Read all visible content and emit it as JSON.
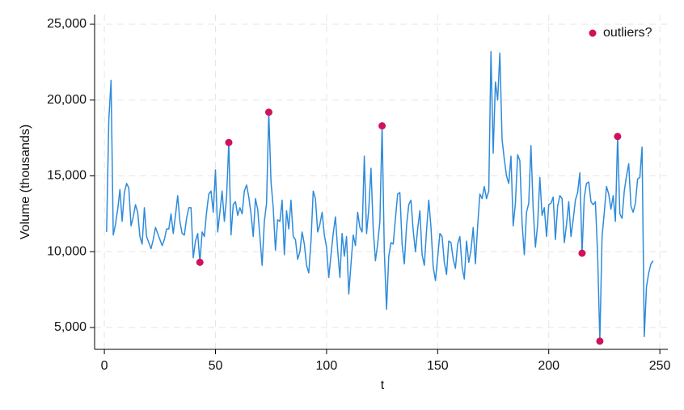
{
  "chart_data": {
    "type": "line",
    "xlabel": "t",
    "ylabel": "Volume (thousands)",
    "xlim": [
      -4.4,
      253.6
    ],
    "ylim": [
      3560,
      25640
    ],
    "xticks": [
      0,
      50,
      100,
      150,
      200,
      250
    ],
    "yticks": [
      {
        "value": 5000,
        "label": "5,000"
      },
      {
        "value": 10000,
        "label": "10,000"
      },
      {
        "value": 15000,
        "label": "15,000"
      },
      {
        "value": 20000,
        "label": "20,000"
      },
      {
        "value": 25000,
        "label": "25,000"
      }
    ],
    "grid": true,
    "legend": "top-right",
    "series": [
      {
        "type": "line",
        "color": "#2e8bdb",
        "x": [
          1,
          2,
          3,
          4,
          5,
          6,
          7,
          8,
          9,
          10,
          11,
          12,
          13,
          14,
          15,
          16,
          17,
          18,
          19,
          20,
          21,
          22,
          23,
          24,
          25,
          26,
          27,
          28,
          29,
          30,
          31,
          32,
          33,
          34,
          35,
          36,
          37,
          38,
          39,
          40,
          41,
          42,
          43,
          44,
          45,
          46,
          47,
          48,
          49,
          50,
          51,
          52,
          53,
          54,
          55,
          56,
          57,
          58,
          59,
          60,
          61,
          62,
          63,
          64,
          65,
          66,
          67,
          68,
          69,
          70,
          71,
          72,
          73,
          74,
          75,
          76,
          77,
          78,
          79,
          80,
          81,
          82,
          83,
          84,
          85,
          86,
          87,
          88,
          89,
          90,
          91,
          92,
          93,
          94,
          95,
          96,
          97,
          98,
          99,
          100,
          101,
          102,
          103,
          104,
          105,
          106,
          107,
          108,
          109,
          110,
          111,
          112,
          113,
          114,
          115,
          116,
          117,
          118,
          119,
          120,
          121,
          122,
          123,
          124,
          125,
          126,
          127,
          128,
          129,
          130,
          131,
          132,
          133,
          134,
          135,
          136,
          137,
          138,
          139,
          140,
          141,
          142,
          143,
          144,
          145,
          146,
          147,
          148,
          149,
          150,
          151,
          152,
          153,
          154,
          155,
          156,
          157,
          158,
          159,
          160,
          161,
          162,
          163,
          164,
          165,
          166,
          167,
          168,
          169,
          170,
          171,
          172,
          173,
          174,
          175,
          176,
          177,
          178,
          179,
          180,
          181,
          182,
          183,
          184,
          185,
          186,
          187,
          188,
          189,
          190,
          191,
          192,
          193,
          194,
          195,
          196,
          197,
          198,
          199,
          200,
          201,
          202,
          203,
          204,
          205,
          206,
          207,
          208,
          209,
          210,
          211,
          212,
          213,
          214,
          215,
          216,
          217,
          218,
          219,
          220,
          221,
          222,
          223,
          224,
          225,
          226,
          227,
          228,
          229,
          230,
          231,
          232,
          233,
          234,
          235,
          236,
          237,
          238,
          239,
          240,
          241,
          242,
          243,
          244,
          245,
          246,
          247
        ],
        "values": [
          11300,
          18700,
          21300,
          11100,
          11800,
          12800,
          14100,
          12000,
          13900,
          14500,
          14200,
          11700,
          12300,
          13100,
          12600,
          11000,
          10500,
          12900,
          11000,
          10600,
          10200,
          10800,
          11600,
          11200,
          10800,
          10400,
          10800,
          11500,
          11500,
          12500,
          11200,
          12400,
          13700,
          12000,
          11200,
          11100,
          12200,
          12900,
          12900,
          9600,
          10700,
          11200,
          9300,
          11300,
          11000,
          12600,
          13800,
          14000,
          12600,
          15400,
          11300,
          12600,
          14000,
          12000,
          13600,
          17200,
          11100,
          13100,
          13300,
          12400,
          12900,
          12500,
          14000,
          14400,
          13600,
          12500,
          11000,
          13500,
          12800,
          11000,
          9100,
          12000,
          13200,
          19200,
          14600,
          12900,
          10100,
          12100,
          12000,
          13400,
          9800,
          12700,
          11500,
          13400,
          11000,
          10800,
          9500,
          10000,
          11300,
          10500,
          9100,
          8600,
          10700,
          14000,
          13500,
          11300,
          11800,
          12600,
          11100,
          10300,
          8300,
          9800,
          11200,
          12300,
          10100,
          8300,
          11200,
          9700,
          11000,
          7200,
          9200,
          11100,
          10400,
          12600,
          11600,
          11300,
          16300,
          11200,
          12800,
          15500,
          11500,
          9400,
          10500,
          12000,
          18300,
          10000,
          6200,
          9700,
          10600,
          10500,
          12200,
          13800,
          13900,
          10500,
          9200,
          11700,
          13100,
          13400,
          11400,
          10000,
          11500,
          12700,
          9800,
          9100,
          11400,
          13400,
          11600,
          9000,
          8100,
          9600,
          11200,
          11000,
          9300,
          8500,
          10700,
          10600,
          9500,
          8900,
          10500,
          11000,
          9000,
          8200,
          10700,
          9300,
          10100,
          11600,
          9200,
          11700,
          13800,
          13500,
          14300,
          13500,
          14000,
          23200,
          16500,
          21200,
          20000,
          23100,
          17400,
          16100,
          15000,
          14500,
          16300,
          11700,
          13200,
          16400,
          16000,
          11900,
          9800,
          12600,
          13200,
          17000,
          12800,
          10300,
          11800,
          14900,
          12400,
          12900,
          11000,
          13100,
          13200,
          13600,
          10800,
          13000,
          13700,
          13500,
          10600,
          11800,
          13300,
          11000,
          12100,
          13400,
          13900,
          15200,
          9900,
          13600,
          14500,
          14600,
          13300,
          13100,
          13300,
          9800,
          4100,
          11000,
          12600,
          14300,
          13800,
          12800,
          13700,
          12000,
          17600,
          12500,
          12200,
          14000,
          15000,
          15800,
          13000,
          12600,
          13200,
          14800,
          14900,
          16900,
          4400,
          7700,
          8600,
          9200,
          9400
        ]
      },
      {
        "type": "scatter",
        "name": "outliers?",
        "color": "#cf1259",
        "x": [
          43,
          56,
          74,
          125,
          215,
          223,
          231
        ],
        "values": [
          9300,
          17200,
          19200,
          18300,
          9900,
          4100,
          17600
        ]
      }
    ]
  }
}
